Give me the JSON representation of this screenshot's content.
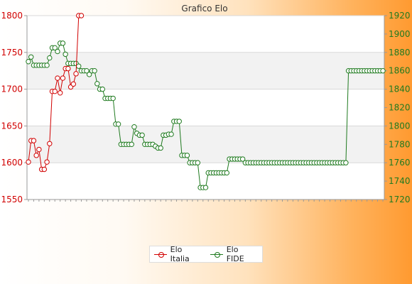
{
  "chart_data": {
    "type": "line",
    "title": "Grafico Elo",
    "y_left": {
      "min": 1550,
      "max": 1800,
      "ticks": [
        1550,
        1600,
        1650,
        1700,
        1750,
        1800
      ],
      "color": "#d10000"
    },
    "y_right": {
      "min": 1720,
      "max": 1920,
      "ticks": [
        1720,
        1740,
        1760,
        1780,
        1800,
        1820,
        1840,
        1860,
        1880,
        1900,
        1920
      ],
      "color": "#1f7a1f"
    },
    "grid": true,
    "legend_position": "bottom",
    "series": [
      {
        "name": "Elo Italia",
        "axis": "left",
        "color": "#d10000",
        "values": [
          1601,
          1630,
          1630,
          1610,
          1618,
          1591,
          1591,
          1601,
          1626,
          1697,
          1697,
          1715,
          1695,
          1715,
          1728,
          1728,
          1703,
          1707,
          1721,
          1800,
          1800
        ]
      },
      {
        "name": "Elo FIDE",
        "axis": "right",
        "color": "#1f7a1f",
        "values": [
          1870,
          1875,
          1866,
          1866,
          1866,
          1866,
          1866,
          1866,
          1874,
          1885,
          1885,
          1881,
          1890,
          1890,
          1878,
          1868,
          1868,
          1868,
          1868,
          1865,
          1860,
          1860,
          1860,
          1856,
          1860,
          1860,
          1846,
          1840,
          1840,
          1830,
          1830,
          1830,
          1830,
          1802,
          1802,
          1780,
          1780,
          1780,
          1780,
          1780,
          1799,
          1792,
          1790,
          1790,
          1780,
          1780,
          1780,
          1780,
          1778,
          1776,
          1776,
          1790,
          1790,
          1791,
          1791,
          1805,
          1805,
          1805,
          1768,
          1768,
          1768,
          1760,
          1760,
          1760,
          1760,
          1733,
          1733,
          1733,
          1749,
          1749,
          1749,
          1749,
          1749,
          1749,
          1749,
          1749,
          1764,
          1764,
          1764,
          1764,
          1764,
          1764,
          1760,
          1760,
          1760,
          1760,
          1760,
          1760,
          1760,
          1760,
          1760,
          1760,
          1760,
          1760,
          1760,
          1760,
          1760,
          1760,
          1760,
          1760,
          1760,
          1760,
          1760,
          1760,
          1760,
          1760,
          1760,
          1760,
          1760,
          1760,
          1760,
          1760,
          1760,
          1760,
          1760,
          1760,
          1760,
          1760,
          1760,
          1760,
          1760,
          1860,
          1860,
          1860,
          1860,
          1860,
          1860,
          1860,
          1860,
          1860,
          1860,
          1860,
          1860,
          1860,
          1860
        ]
      }
    ]
  },
  "legend": {
    "italia_label": "Elo Italia",
    "fide_label": "Elo FIDE"
  }
}
